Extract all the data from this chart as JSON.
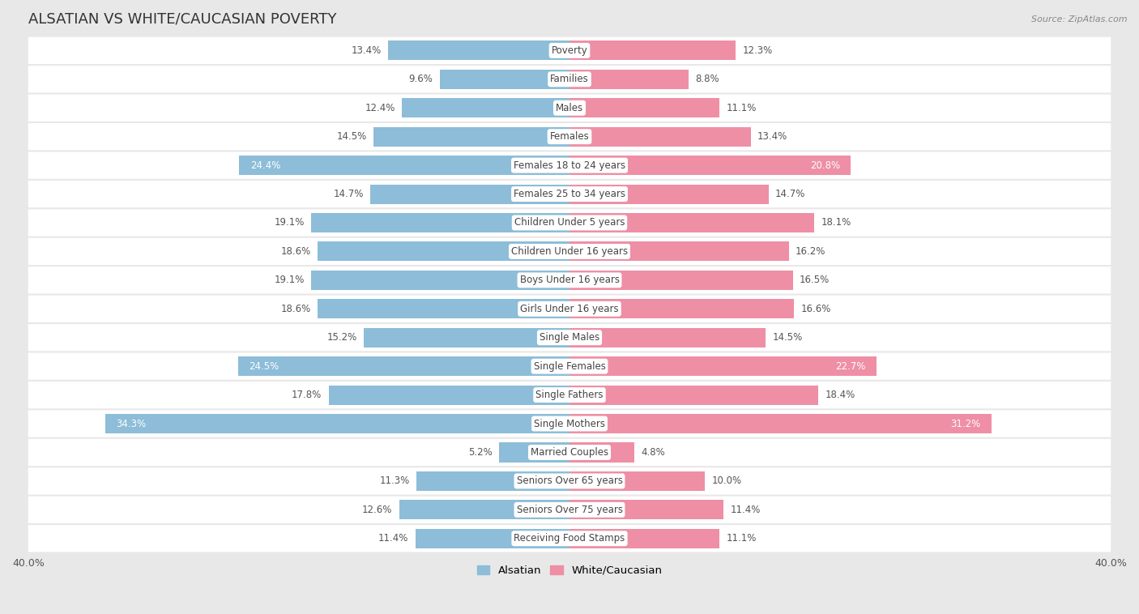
{
  "title": "ALSATIAN VS WHITE/CAUCASIAN POVERTY",
  "source": "Source: ZipAtlas.com",
  "categories": [
    "Poverty",
    "Families",
    "Males",
    "Females",
    "Females 18 to 24 years",
    "Females 25 to 34 years",
    "Children Under 5 years",
    "Children Under 16 years",
    "Boys Under 16 years",
    "Girls Under 16 years",
    "Single Males",
    "Single Females",
    "Single Fathers",
    "Single Mothers",
    "Married Couples",
    "Seniors Over 65 years",
    "Seniors Over 75 years",
    "Receiving Food Stamps"
  ],
  "alsatian": [
    13.4,
    9.6,
    12.4,
    14.5,
    24.4,
    14.7,
    19.1,
    18.6,
    19.1,
    18.6,
    15.2,
    24.5,
    17.8,
    34.3,
    5.2,
    11.3,
    12.6,
    11.4
  ],
  "white_caucasian": [
    12.3,
    8.8,
    11.1,
    13.4,
    20.8,
    14.7,
    18.1,
    16.2,
    16.5,
    16.6,
    14.5,
    22.7,
    18.4,
    31.2,
    4.8,
    10.0,
    11.4,
    11.1
  ],
  "alsatian_color": "#8dbdd8",
  "white_caucasian_color": "#ee8fa5",
  "background_color": "#e8e8e8",
  "row_bg_color": "#ffffff",
  "max_value": 40.0,
  "bar_height": 0.68,
  "title_fontsize": 13,
  "label_fontsize": 8.5,
  "value_fontsize": 8.5,
  "tick_fontsize": 9,
  "inner_label_threshold": 20.0
}
